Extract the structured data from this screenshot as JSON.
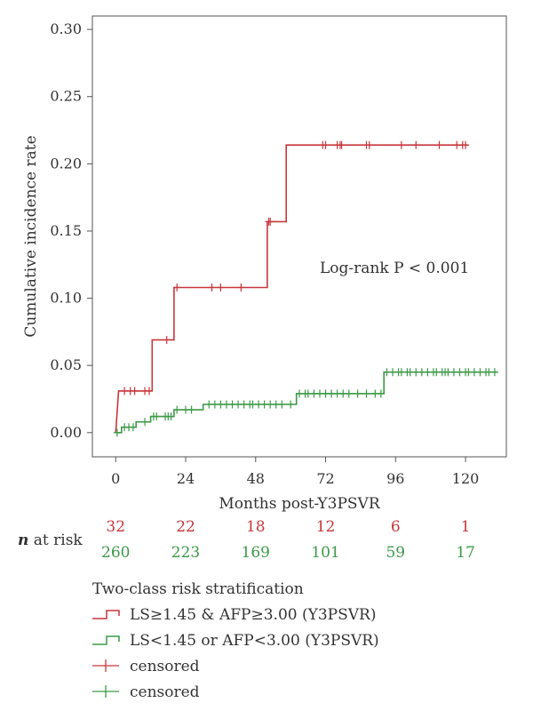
{
  "chart_data": {
    "type": "line",
    "subtype": "kaplan-meier cumulative incidence (step)",
    "xlabel": "Months post-Y3PSVR",
    "ylabel": "Cumulative incidence rate",
    "xlim": [
      -8,
      134
    ],
    "ylim": [
      -0.018,
      0.31
    ],
    "xticks": [
      0,
      24,
      48,
      72,
      96,
      120
    ],
    "yticks": [
      0.0,
      0.05,
      0.1,
      0.15,
      0.2,
      0.25,
      0.3
    ],
    "grid": false,
    "annotation": "Log-rank P < 0.001",
    "series": [
      {
        "name": "LS≥1.45 & AFP≥3.00 (Y3PSVR)",
        "color": "#c8373c",
        "steps": [
          [
            0,
            0
          ],
          [
            1,
            0.031
          ],
          [
            12.5,
            0.031
          ],
          [
            12.5,
            0.069
          ],
          [
            20,
            0.069
          ],
          [
            20,
            0.108
          ],
          [
            52,
            0.108
          ],
          [
            52,
            0.157
          ],
          [
            58.5,
            0.157
          ],
          [
            58.5,
            0.214
          ],
          [
            121,
            0.214
          ]
        ],
        "censored": [
          3,
          5,
          6.5,
          10,
          11.5,
          17.5,
          21,
          33,
          36,
          43,
          52.5,
          53,
          71,
          72,
          76,
          77,
          77.5,
          86,
          87,
          98,
          103,
          111,
          117,
          119,
          120
        ]
      },
      {
        "name": "LS<1.45 or AFP<3.00 (Y3PSVR)",
        "color": "#3c9a48",
        "steps": [
          [
            0,
            0
          ],
          [
            2,
            0
          ],
          [
            2,
            0.004
          ],
          [
            7,
            0.004
          ],
          [
            7,
            0.008
          ],
          [
            12,
            0.008
          ],
          [
            12,
            0.012
          ],
          [
            20,
            0.012
          ],
          [
            20,
            0.017
          ],
          [
            30,
            0.017
          ],
          [
            30,
            0.021
          ],
          [
            62,
            0.021
          ],
          [
            62,
            0.029
          ],
          [
            92,
            0.029
          ],
          [
            92,
            0.045
          ],
          [
            131,
            0.045
          ]
        ],
        "censored": [
          0.5,
          3,
          4.5,
          6,
          10,
          13,
          14,
          17,
          18,
          19,
          21,
          24,
          26,
          32,
          34,
          36,
          38,
          40,
          42,
          44,
          46,
          47,
          49,
          51,
          53,
          55,
          57,
          60,
          63,
          65,
          66,
          68,
          70,
          72,
          74,
          76,
          78,
          80,
          83,
          86,
          89,
          91,
          93,
          95,
          97,
          98,
          100,
          101,
          103,
          105,
          107,
          109,
          110,
          112,
          113,
          114,
          116,
          118,
          120,
          121,
          123,
          125,
          127,
          128,
          130
        ]
      }
    ]
  },
  "risk_table": {
    "label_italic": "n",
    "label_rest": " at risk",
    "times": [
      0,
      24,
      48,
      72,
      96,
      120
    ],
    "rows": [
      {
        "color": "#c8373c",
        "values": [
          "32",
          "22",
          "18",
          "12",
          "6",
          "1"
        ]
      },
      {
        "color": "#3c9a48",
        "values": [
          "260",
          "223",
          "169",
          "101",
          "59",
          "17"
        ]
      }
    ]
  },
  "legend": {
    "title": "Two-class risk stratification",
    "items": [
      {
        "kind": "step",
        "color": "#c8373c",
        "label": "LS≥1.45 & AFP≥3.00 (Y3PSVR)"
      },
      {
        "kind": "step",
        "color": "#3c9a48",
        "label": "LS<1.45 or AFP<3.00 (Y3PSVR)"
      },
      {
        "kind": "plus",
        "color": "#c8373c",
        "label": "censored"
      },
      {
        "kind": "plus",
        "color": "#3c9a48",
        "label": "censored"
      }
    ]
  }
}
